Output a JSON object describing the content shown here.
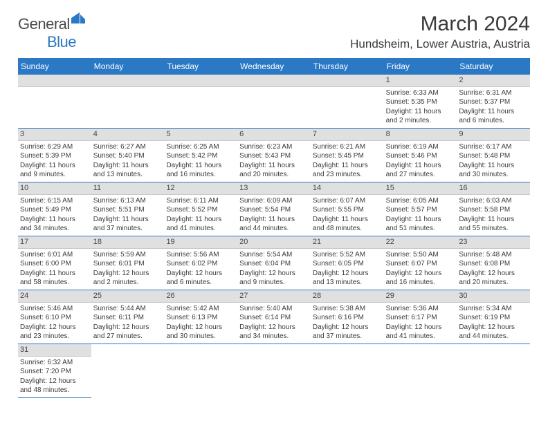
{
  "logo": {
    "text1": "Genera",
    "text2": "l",
    "text3": "Blue"
  },
  "title": "March 2024",
  "location": "Hundsheim, Lower Austria, Austria",
  "weekdays": [
    "Sunday",
    "Monday",
    "Tuesday",
    "Wednesday",
    "Thursday",
    "Friday",
    "Saturday"
  ],
  "colors": {
    "header_bar": "#2b78c5",
    "day_strip": "#e0e0e0",
    "border": "#2b78c5",
    "text": "#3a3a3a",
    "background": "#ffffff"
  },
  "typography": {
    "title_fontsize": 30,
    "location_fontsize": 17,
    "weekday_fontsize": 12,
    "cell_fontsize": 10,
    "logo_fontsize": 22
  },
  "sunrise_label": "Sunrise: ",
  "sunset_label": "Sunset: ",
  "daylight_label": "Daylight: ",
  "weeks": [
    [
      {
        "blank": true
      },
      {
        "blank": true
      },
      {
        "blank": true
      },
      {
        "blank": true
      },
      {
        "blank": true
      },
      {
        "n": "1",
        "sr": "6:33 AM",
        "ss": "5:35 PM",
        "dl": "11 hours and 2 minutes."
      },
      {
        "n": "2",
        "sr": "6:31 AM",
        "ss": "5:37 PM",
        "dl": "11 hours and 6 minutes."
      }
    ],
    [
      {
        "n": "3",
        "sr": "6:29 AM",
        "ss": "5:39 PM",
        "dl": "11 hours and 9 minutes."
      },
      {
        "n": "4",
        "sr": "6:27 AM",
        "ss": "5:40 PM",
        "dl": "11 hours and 13 minutes."
      },
      {
        "n": "5",
        "sr": "6:25 AM",
        "ss": "5:42 PM",
        "dl": "11 hours and 16 minutes."
      },
      {
        "n": "6",
        "sr": "6:23 AM",
        "ss": "5:43 PM",
        "dl": "11 hours and 20 minutes."
      },
      {
        "n": "7",
        "sr": "6:21 AM",
        "ss": "5:45 PM",
        "dl": "11 hours and 23 minutes."
      },
      {
        "n": "8",
        "sr": "6:19 AM",
        "ss": "5:46 PM",
        "dl": "11 hours and 27 minutes."
      },
      {
        "n": "9",
        "sr": "6:17 AM",
        "ss": "5:48 PM",
        "dl": "11 hours and 30 minutes."
      }
    ],
    [
      {
        "n": "10",
        "sr": "6:15 AM",
        "ss": "5:49 PM",
        "dl": "11 hours and 34 minutes."
      },
      {
        "n": "11",
        "sr": "6:13 AM",
        "ss": "5:51 PM",
        "dl": "11 hours and 37 minutes."
      },
      {
        "n": "12",
        "sr": "6:11 AM",
        "ss": "5:52 PM",
        "dl": "11 hours and 41 minutes."
      },
      {
        "n": "13",
        "sr": "6:09 AM",
        "ss": "5:54 PM",
        "dl": "11 hours and 44 minutes."
      },
      {
        "n": "14",
        "sr": "6:07 AM",
        "ss": "5:55 PM",
        "dl": "11 hours and 48 minutes."
      },
      {
        "n": "15",
        "sr": "6:05 AM",
        "ss": "5:57 PM",
        "dl": "11 hours and 51 minutes."
      },
      {
        "n": "16",
        "sr": "6:03 AM",
        "ss": "5:58 PM",
        "dl": "11 hours and 55 minutes."
      }
    ],
    [
      {
        "n": "17",
        "sr": "6:01 AM",
        "ss": "6:00 PM",
        "dl": "11 hours and 58 minutes."
      },
      {
        "n": "18",
        "sr": "5:59 AM",
        "ss": "6:01 PM",
        "dl": "12 hours and 2 minutes."
      },
      {
        "n": "19",
        "sr": "5:56 AM",
        "ss": "6:02 PM",
        "dl": "12 hours and 6 minutes."
      },
      {
        "n": "20",
        "sr": "5:54 AM",
        "ss": "6:04 PM",
        "dl": "12 hours and 9 minutes."
      },
      {
        "n": "21",
        "sr": "5:52 AM",
        "ss": "6:05 PM",
        "dl": "12 hours and 13 minutes."
      },
      {
        "n": "22",
        "sr": "5:50 AM",
        "ss": "6:07 PM",
        "dl": "12 hours and 16 minutes."
      },
      {
        "n": "23",
        "sr": "5:48 AM",
        "ss": "6:08 PM",
        "dl": "12 hours and 20 minutes."
      }
    ],
    [
      {
        "n": "24",
        "sr": "5:46 AM",
        "ss": "6:10 PM",
        "dl": "12 hours and 23 minutes."
      },
      {
        "n": "25",
        "sr": "5:44 AM",
        "ss": "6:11 PM",
        "dl": "12 hours and 27 minutes."
      },
      {
        "n": "26",
        "sr": "5:42 AM",
        "ss": "6:13 PM",
        "dl": "12 hours and 30 minutes."
      },
      {
        "n": "27",
        "sr": "5:40 AM",
        "ss": "6:14 PM",
        "dl": "12 hours and 34 minutes."
      },
      {
        "n": "28",
        "sr": "5:38 AM",
        "ss": "6:16 PM",
        "dl": "12 hours and 37 minutes."
      },
      {
        "n": "29",
        "sr": "5:36 AM",
        "ss": "6:17 PM",
        "dl": "12 hours and 41 minutes."
      },
      {
        "n": "30",
        "sr": "5:34 AM",
        "ss": "6:19 PM",
        "dl": "12 hours and 44 minutes."
      }
    ],
    [
      {
        "n": "31",
        "sr": "6:32 AM",
        "ss": "7:20 PM",
        "dl": "12 hours and 48 minutes."
      },
      {
        "blank": true
      },
      {
        "blank": true
      },
      {
        "blank": true
      },
      {
        "blank": true
      },
      {
        "blank": true
      },
      {
        "blank": true
      }
    ]
  ]
}
